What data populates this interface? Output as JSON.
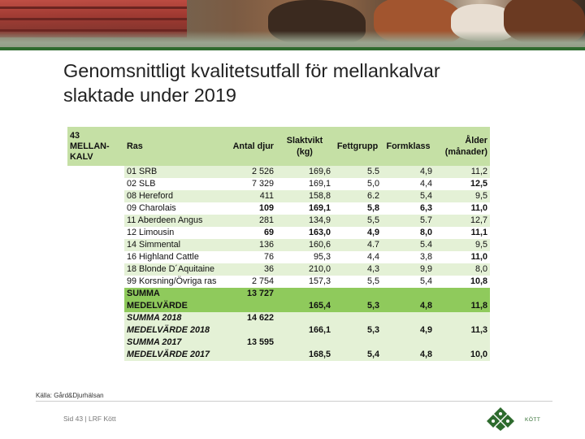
{
  "slide": {
    "title_line1": "Genomsnittligt kvalitetsutfall för mellankalvar",
    "title_line2": "slaktade under 2019",
    "source": "Källa: Gård&Djurhälsan",
    "footer": "Sid 43 | LRF Kött",
    "logo_text": "KÖTT"
  },
  "table": {
    "header": {
      "group": [
        "43",
        "MELLAN-",
        "KALV"
      ],
      "ras": "Ras",
      "antal": "Antal djur",
      "slaktvikt": [
        "Slaktvikt",
        "(kg)"
      ],
      "fettgrupp": "Fettgrupp",
      "formklass": "Formklass",
      "alder": [
        "Ålder",
        "(månader)"
      ]
    },
    "rows": [
      {
        "ras": "01 SRB",
        "antal": "2 526",
        "vikt": "169,6",
        "fett": "5.5",
        "form": "4,9",
        "alder": "11,2"
      },
      {
        "ras": "02 SLB",
        "antal": "7 329",
        "vikt": "169,1",
        "fett": "5,0",
        "form": "4,4",
        "alder": "12,5"
      },
      {
        "ras": "08 Hereford",
        "antal": "411",
        "vikt": "158,8",
        "fett": "6.2",
        "form": "5,4",
        "alder": "9,5"
      },
      {
        "ras": "09 Charolais",
        "antal": "109",
        "vikt": "169,1",
        "fett": "5,8",
        "form": "6,3",
        "alder": "11,0"
      },
      {
        "ras": "11 Aberdeen Angus",
        "antal": "281",
        "vikt": "134,9",
        "fett": "5,5",
        "form": "5.7",
        "alder": "12,7"
      },
      {
        "ras": "12 Limousin",
        "antal": "69",
        "vikt": "163,0",
        "fett": "4,9",
        "form": "8,0",
        "alder": "11,1"
      },
      {
        "ras": "14 Simmental",
        "antal": "136",
        "vikt": "160,6",
        "fett": "4.7",
        "form": "5.4",
        "alder": "9,5"
      },
      {
        "ras": "16 Highland Cattle",
        "antal": "76",
        "vikt": "95,3",
        "fett": "4,4",
        "form": "3,8",
        "alder": "11,0"
      },
      {
        "ras": "18 Blonde D´Aquitaine",
        "antal": "36",
        "vikt": "210,0",
        "fett": "4,3",
        "form": "9,9",
        "alder": "8,0"
      },
      {
        "ras": "99 Korsning/Övriga ras",
        "antal": "2 754",
        "vikt": "157,3",
        "fett": "5,5",
        "form": "5,4",
        "alder": "10,8"
      }
    ],
    "summa": {
      "label1": "SUMMA",
      "label2": "MEDELVÄRDE",
      "antal": "13 727",
      "vikt": "165,4",
      "fett": "5,3",
      "form": "4,8",
      "alder": "11,8"
    },
    "summa_2018": {
      "label1": "SUMMA 2018",
      "label2": "MEDELVÄRDE 2018",
      "antal": "14 622",
      "vikt": "166,1",
      "fett": "5,3",
      "form": "4,9",
      "alder": "11,3"
    },
    "summa_2017": {
      "label1": "SUMMA 2017",
      "label2": "MEDELVÄRDE 2017",
      "antal": "13 595",
      "vikt": "168,5",
      "fett": "5,4",
      "form": "4,8",
      "alder": "10,0"
    }
  },
  "colors": {
    "header_green": "#c5e0a5",
    "band_green": "#e4f1d6",
    "summa_green": "#8fca5c",
    "brand_green": "#2e6b2e"
  }
}
